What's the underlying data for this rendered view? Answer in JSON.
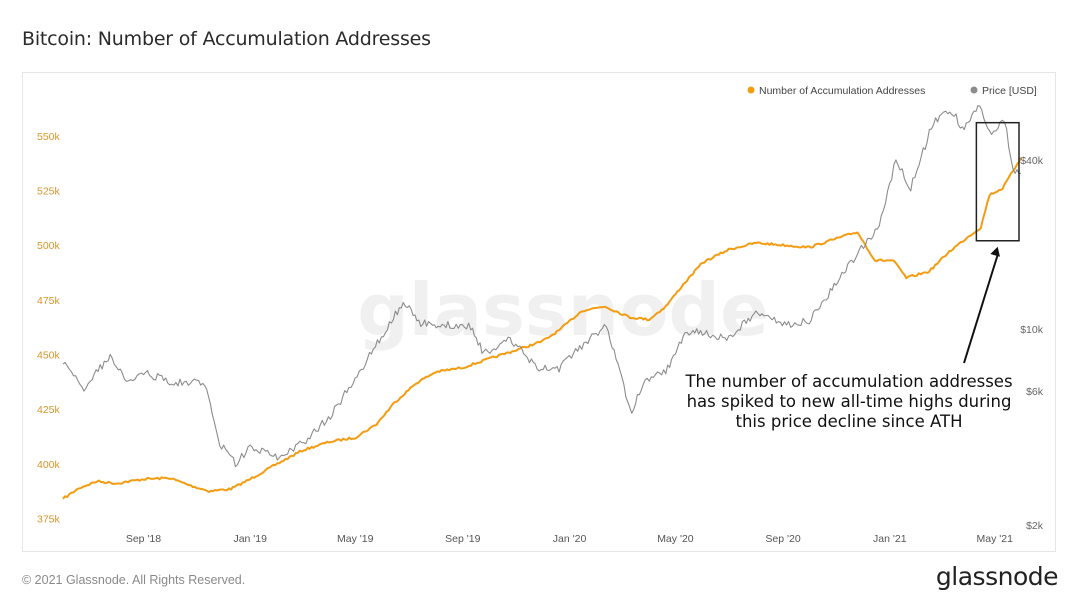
{
  "page": {
    "title": "Bitcoin: Number of Accumulation Addresses",
    "copyright": "© 2021 Glassnode. All Rights Reserved.",
    "brand": "glassnode",
    "watermark": "glassnode"
  },
  "chart_data": {
    "type": "line",
    "x_range": [
      "2018-06-01",
      "2021-05-31"
    ],
    "x_ticks": [
      "Sep '18",
      "Jan '19",
      "May '19",
      "Sep '19",
      "Jan '20",
      "May '20",
      "Sep '20",
      "Jan '21",
      "May '21"
    ],
    "x_tick_dates": [
      "2018-09-01",
      "2019-01-01",
      "2019-05-01",
      "2019-09-01",
      "2020-01-01",
      "2020-05-01",
      "2020-09-01",
      "2021-01-01",
      "2021-05-01"
    ],
    "y_left": {
      "range": [
        372000,
        565000
      ],
      "ticks": [
        375000,
        400000,
        425000,
        450000,
        475000,
        500000,
        525000,
        550000
      ],
      "tick_labels": [
        "375k",
        "400k",
        "425k",
        "450k",
        "475k",
        "500k",
        "525k",
        "550k"
      ]
    },
    "y_right": {
      "scale": "log",
      "range": [
        2000,
        64000
      ],
      "ticks": [
        2000,
        6000,
        10000,
        40000
      ],
      "tick_labels": [
        "$2k",
        "$6k",
        "$10k",
        "$40k"
      ]
    },
    "legend_position": "top-right",
    "series": [
      {
        "name": "Number of Accumulation Addresses",
        "axis": "left",
        "color": "#f39c12",
        "points": [
          [
            "2018-06-01",
            384000
          ],
          [
            "2018-06-20",
            389000
          ],
          [
            "2018-07-10",
            392000
          ],
          [
            "2018-08-01",
            391000
          ],
          [
            "2018-09-01",
            393000
          ],
          [
            "2018-10-01",
            393500
          ],
          [
            "2018-10-25",
            390000
          ],
          [
            "2018-11-15",
            387500
          ],
          [
            "2018-12-10",
            388500
          ],
          [
            "2019-01-01",
            393000
          ],
          [
            "2019-02-01",
            400000
          ],
          [
            "2019-03-01",
            406000
          ],
          [
            "2019-04-01",
            410000
          ],
          [
            "2019-05-01",
            412000
          ],
          [
            "2019-05-25",
            418000
          ],
          [
            "2019-06-15",
            428000
          ],
          [
            "2019-07-10",
            437000
          ],
          [
            "2019-08-01",
            442000
          ],
          [
            "2019-09-01",
            444000
          ],
          [
            "2019-10-01",
            448000
          ],
          [
            "2019-11-01",
            452000
          ],
          [
            "2019-12-01",
            456000
          ],
          [
            "2019-12-20",
            461000
          ],
          [
            "2020-01-15",
            470000
          ],
          [
            "2020-02-10",
            472000
          ],
          [
            "2020-03-10",
            467000
          ],
          [
            "2020-04-01",
            466000
          ],
          [
            "2020-04-20",
            472000
          ],
          [
            "2020-05-10",
            482000
          ],
          [
            "2020-06-01",
            492000
          ],
          [
            "2020-07-01",
            498000
          ],
          [
            "2020-08-01",
            501000
          ],
          [
            "2020-09-01",
            500000
          ],
          [
            "2020-10-01",
            499000
          ],
          [
            "2020-11-01",
            503000
          ],
          [
            "2020-11-25",
            506000
          ],
          [
            "2020-12-15",
            493000
          ],
          [
            "2021-01-05",
            493000
          ],
          [
            "2021-01-20",
            485000
          ],
          [
            "2021-02-15",
            488000
          ],
          [
            "2021-03-10",
            497000
          ],
          [
            "2021-04-01",
            504000
          ],
          [
            "2021-04-15",
            508000
          ],
          [
            "2021-04-25",
            523000
          ],
          [
            "2021-05-10",
            526000
          ],
          [
            "2021-05-31",
            540000
          ]
        ]
      },
      {
        "name": "Price [USD]",
        "axis": "right",
        "color": "#8c8c8c",
        "points": [
          [
            "2018-06-01",
            7500
          ],
          [
            "2018-06-25",
            6200
          ],
          [
            "2018-07-25",
            8000
          ],
          [
            "2018-08-15",
            6400
          ],
          [
            "2018-09-01",
            7000
          ],
          [
            "2018-10-01",
            6500
          ],
          [
            "2018-11-10",
            6400
          ],
          [
            "2018-11-25",
            4000
          ],
          [
            "2018-12-15",
            3300
          ],
          [
            "2019-01-01",
            3800
          ],
          [
            "2019-02-01",
            3500
          ],
          [
            "2019-03-01",
            3900
          ],
          [
            "2019-04-05",
            5000
          ],
          [
            "2019-05-15",
            7800
          ],
          [
            "2019-06-25",
            12500
          ],
          [
            "2019-07-15",
            10500
          ],
          [
            "2019-08-15",
            10300
          ],
          [
            "2019-09-10",
            10200
          ],
          [
            "2019-09-25",
            8200
          ],
          [
            "2019-10-25",
            9300
          ],
          [
            "2019-11-25",
            7200
          ],
          [
            "2019-12-20",
            7200
          ],
          [
            "2020-01-15",
            8700
          ],
          [
            "2020-02-12",
            10300
          ],
          [
            "2020-03-12",
            5000
          ],
          [
            "2020-03-25",
            6500
          ],
          [
            "2020-04-20",
            7000
          ],
          [
            "2020-05-10",
            9500
          ],
          [
            "2020-06-01",
            9800
          ],
          [
            "2020-07-01",
            9200
          ],
          [
            "2020-08-01",
            11500
          ],
          [
            "2020-09-05",
            10300
          ],
          [
            "2020-10-01",
            10700
          ],
          [
            "2020-10-25",
            13500
          ],
          [
            "2020-11-25",
            18500
          ],
          [
            "2020-12-20",
            23500
          ],
          [
            "2021-01-08",
            40000
          ],
          [
            "2021-01-25",
            32000
          ],
          [
            "2021-02-20",
            55000
          ],
          [
            "2021-03-13",
            60000
          ],
          [
            "2021-03-25",
            52000
          ],
          [
            "2021-04-14",
            63000
          ],
          [
            "2021-04-25",
            50000
          ],
          [
            "2021-05-12",
            56000
          ],
          [
            "2021-05-22",
            37000
          ],
          [
            "2021-05-31",
            36000
          ]
        ]
      }
    ],
    "highlight": {
      "x_start": "2021-04-10",
      "x_end": "2021-05-31",
      "y_top": 556000,
      "y_bottom": 502000
    },
    "annotation": {
      "lines": [
        "The number of accumulation addresses",
        "has spiked to new all-time highs during",
        "this price decline since ATH"
      ]
    }
  }
}
